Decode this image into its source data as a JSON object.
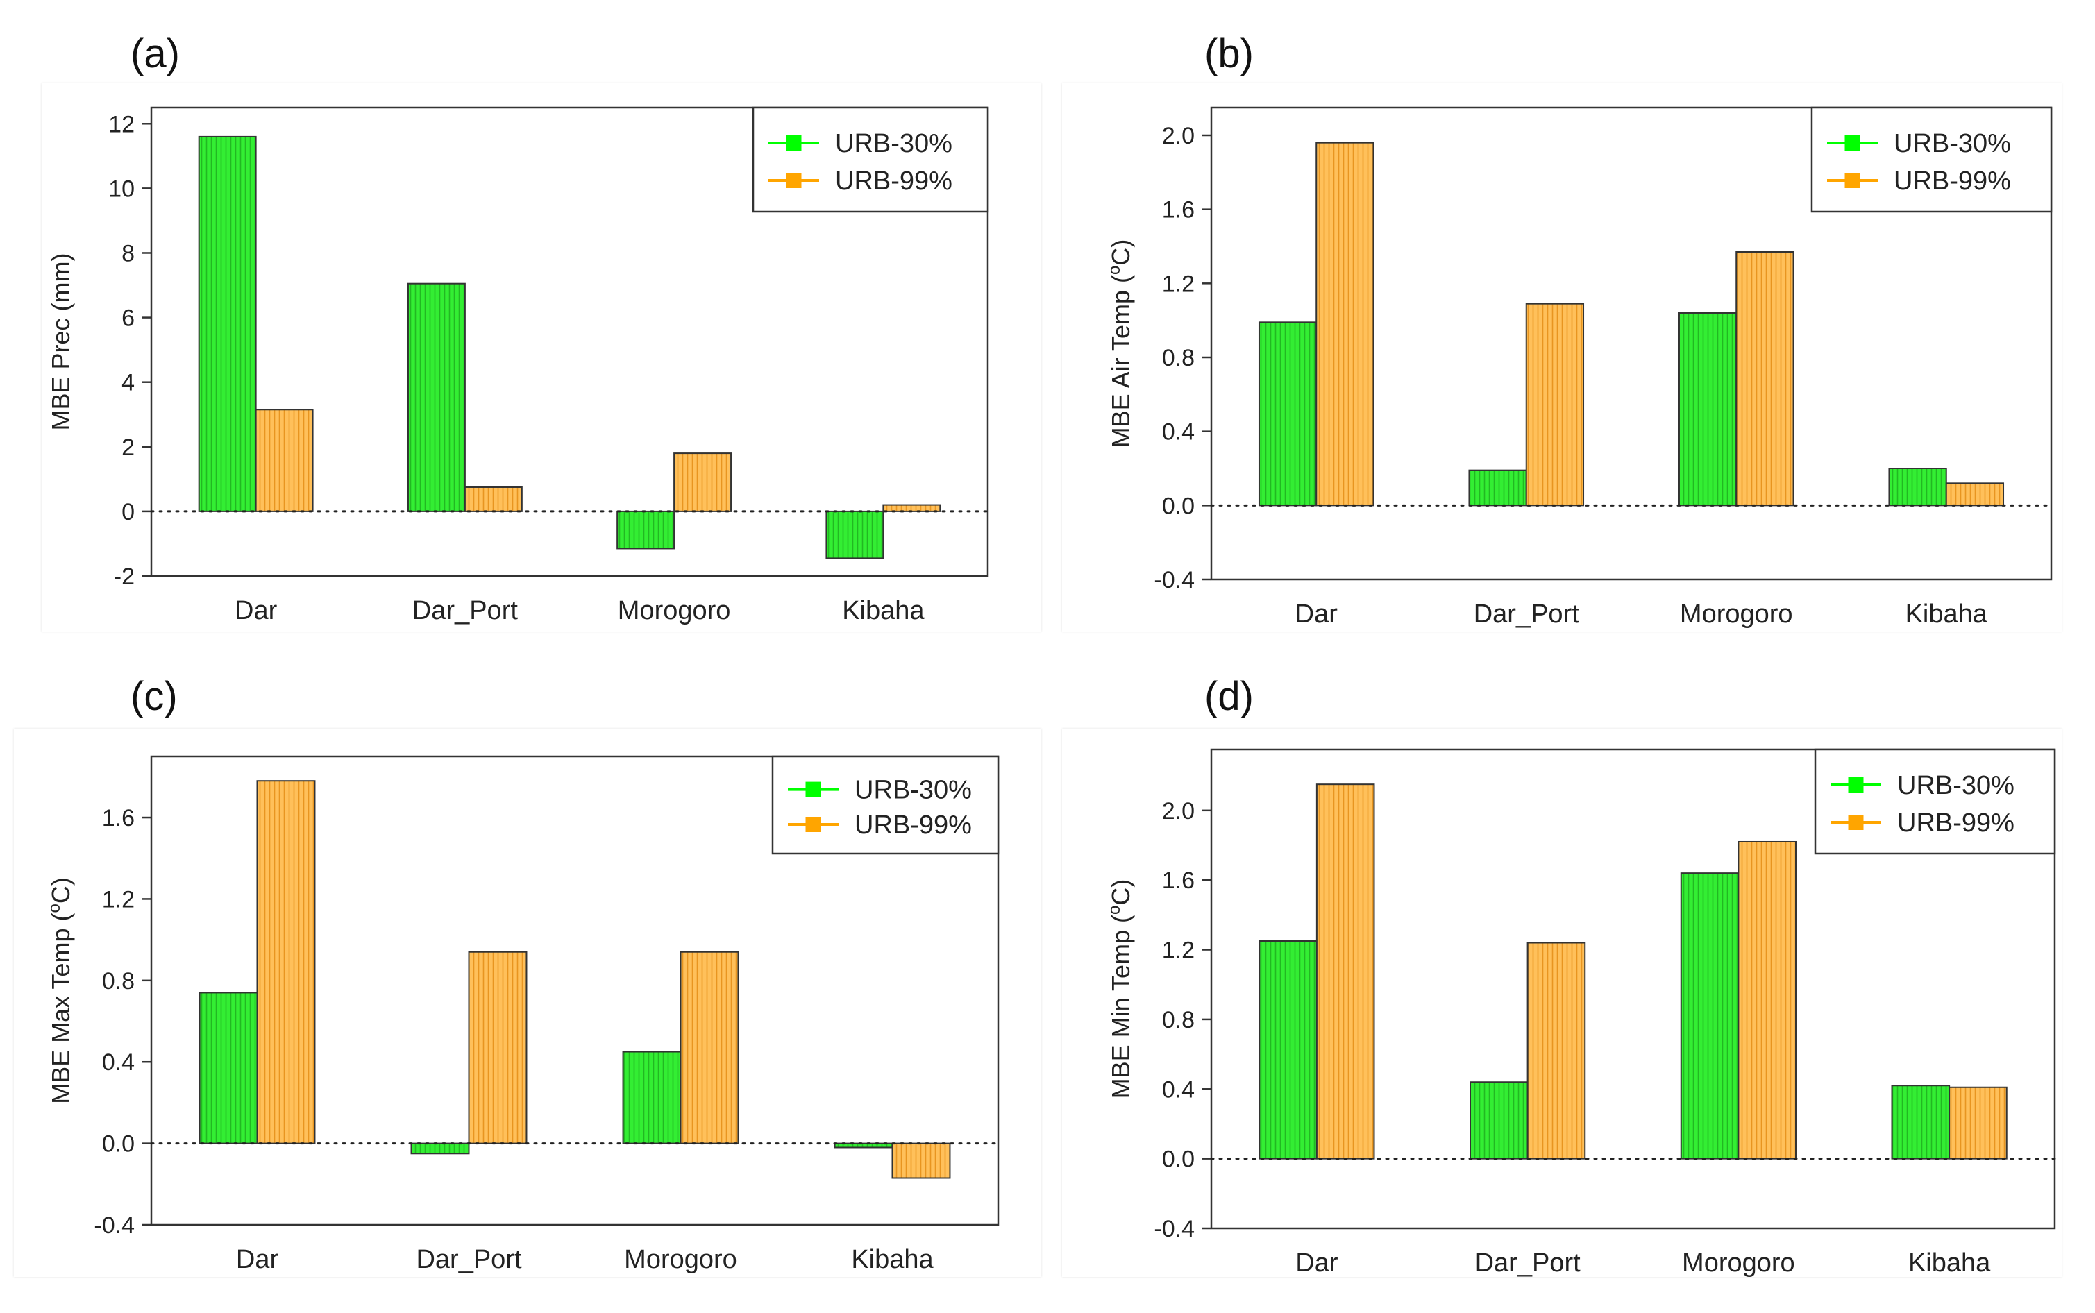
{
  "colors": {
    "urb30_fill": "#33ee33",
    "urb30_hatch": "#22b822",
    "urb99_fill": "#ffc05a",
    "urb99_hatch": "#e89520",
    "urb30_marker": "#00ff00",
    "urb99_marker": "#ffa500"
  },
  "chart_data": [
    {
      "type": "bar",
      "panel_label": "(a)",
      "categories": [
        "Dar",
        "Dar_Port",
        "Morogoro",
        "Kibaha"
      ],
      "series": [
        {
          "name": "URB-30%",
          "values": [
            11.6,
            7.05,
            -1.15,
            -1.45
          ]
        },
        {
          "name": "URB-99%",
          "values": [
            3.15,
            0.75,
            1.8,
            0.2
          ]
        }
      ],
      "ylabel": "MBE Prec (mm)",
      "ylim": [
        -2,
        12.5
      ],
      "yticks": [
        -2,
        0,
        2,
        4,
        6,
        8,
        10,
        12
      ],
      "ytick_labels": [
        "-2",
        "0",
        "2",
        "4",
        "6",
        "8",
        "10",
        "12"
      ],
      "legend_position": "top-right",
      "zero_line": "dotted"
    },
    {
      "type": "bar",
      "panel_label": "(b)",
      "categories": [
        "Dar",
        "Dar_Port",
        "Morogoro",
        "Kibaha"
      ],
      "series": [
        {
          "name": "URB-30%",
          "values": [
            0.99,
            0.19,
            1.04,
            0.2
          ]
        },
        {
          "name": "URB-99%",
          "values": [
            1.96,
            1.09,
            1.37,
            0.12
          ]
        }
      ],
      "ylabel_main": "MBE Air Temp (",
      "ylabel_sup": "o",
      "ylabel_end": "C)",
      "ylim": [
        -0.4,
        2.15
      ],
      "yticks": [
        -0.4,
        0.0,
        0.4,
        0.8,
        1.2,
        1.6,
        2.0
      ],
      "ytick_labels": [
        "-0.4",
        "0.0",
        "0.4",
        "0.8",
        "1.2",
        "1.6",
        "2.0"
      ],
      "legend_position": "top-right",
      "zero_line": "dotted"
    },
    {
      "type": "bar",
      "panel_label": "(c)",
      "categories": [
        "Dar",
        "Dar_Port",
        "Morogoro",
        "Kibaha"
      ],
      "series": [
        {
          "name": "URB-30%",
          "values": [
            0.74,
            -0.05,
            0.45,
            -0.02
          ]
        },
        {
          "name": "URB-99%",
          "values": [
            1.78,
            0.94,
            0.94,
            -0.17
          ]
        }
      ],
      "ylabel_main": "MBE Max Temp (",
      "ylabel_sup": "o",
      "ylabel_end": "C)",
      "ylim": [
        -0.4,
        1.9
      ],
      "yticks": [
        -0.4,
        0.0,
        0.4,
        0.8,
        1.2,
        1.6
      ],
      "ytick_labels": [
        "-0.4",
        "0.0",
        "0.4",
        "0.8",
        "1.2",
        "1.6"
      ],
      "legend_position": "top-right",
      "zero_line": "dotted"
    },
    {
      "type": "bar",
      "panel_label": "(d)",
      "categories": [
        "Dar",
        "Dar_Port",
        "Morogoro",
        "Kibaha"
      ],
      "series": [
        {
          "name": "URB-30%",
          "values": [
            1.25,
            0.44,
            1.64,
            0.42
          ]
        },
        {
          "name": "URB-99%",
          "values": [
            2.15,
            1.24,
            1.82,
            0.41
          ]
        }
      ],
      "ylabel_main": "MBE Min Temp (",
      "ylabel_sup": "o",
      "ylabel_end": "C)",
      "ylim": [
        -0.4,
        2.35
      ],
      "yticks": [
        -0.4,
        0.0,
        0.4,
        0.8,
        1.2,
        1.6,
        2.0
      ],
      "ytick_labels": [
        "-0.4",
        "0.0",
        "0.4",
        "0.8",
        "1.2",
        "1.6",
        "2.0"
      ],
      "legend_position": "top-right",
      "zero_line": "dotted"
    }
  ]
}
